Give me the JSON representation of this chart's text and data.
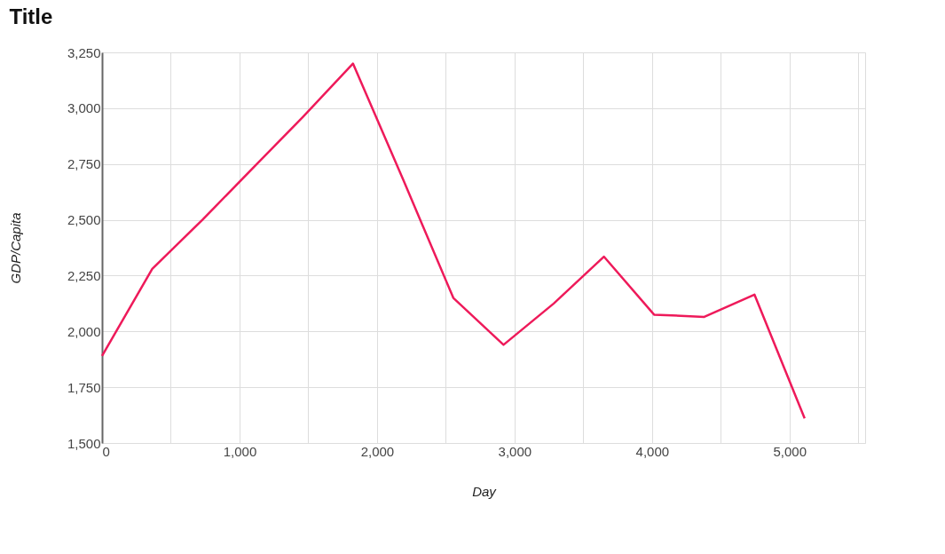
{
  "chart_data": {
    "type": "line",
    "title": "Title",
    "xlabel": "Day",
    "ylabel": "GDP/Capita",
    "x": [
      0,
      365,
      730,
      1095,
      1460,
      1825,
      2190,
      2555,
      2920,
      3285,
      3650,
      4015,
      4380,
      4745,
      5110
    ],
    "series": [
      {
        "color": "#ee1a5a",
        "values": [
          1890,
          2280,
          2500,
          2730,
          2960,
          3200,
          2680,
          2150,
          1940,
          2125,
          2335,
          2075,
          2065,
          2165,
          1610
        ]
      }
    ],
    "xlim": [
      0,
      5550
    ],
    "xticks": [
      0,
      {
        "value": 500,
        "label": null
      },
      {
        "value": 1000,
        "label": "1,000"
      },
      {
        "value": 1500,
        "label": null
      },
      {
        "value": 2000,
        "label": "2,000"
      },
      {
        "value": 2500,
        "label": null
      },
      {
        "value": 3000,
        "label": "3,000"
      },
      {
        "value": 3500,
        "label": null
      },
      {
        "value": 4000,
        "label": "4,000"
      },
      {
        "value": 4500,
        "label": null
      },
      {
        "value": 5000,
        "label": "5,000"
      },
      {
        "value": 5500,
        "label": null
      }
    ],
    "ylim": [
      1500,
      3250
    ],
    "yticks": [
      {
        "value": 1500,
        "label": "1,500"
      },
      {
        "value": 1750,
        "label": "1,750"
      },
      {
        "value": 2000,
        "label": "2,000"
      },
      {
        "value": 2250,
        "label": "2,250"
      },
      {
        "value": 2500,
        "label": "2,500"
      },
      {
        "value": 2750,
        "label": "2,750"
      },
      {
        "value": 3000,
        "label": "3,000"
      },
      {
        "value": 3250,
        "label": "3,250"
      }
    ],
    "grid": true,
    "legend": false,
    "marker": "none",
    "line_style": "solid"
  }
}
